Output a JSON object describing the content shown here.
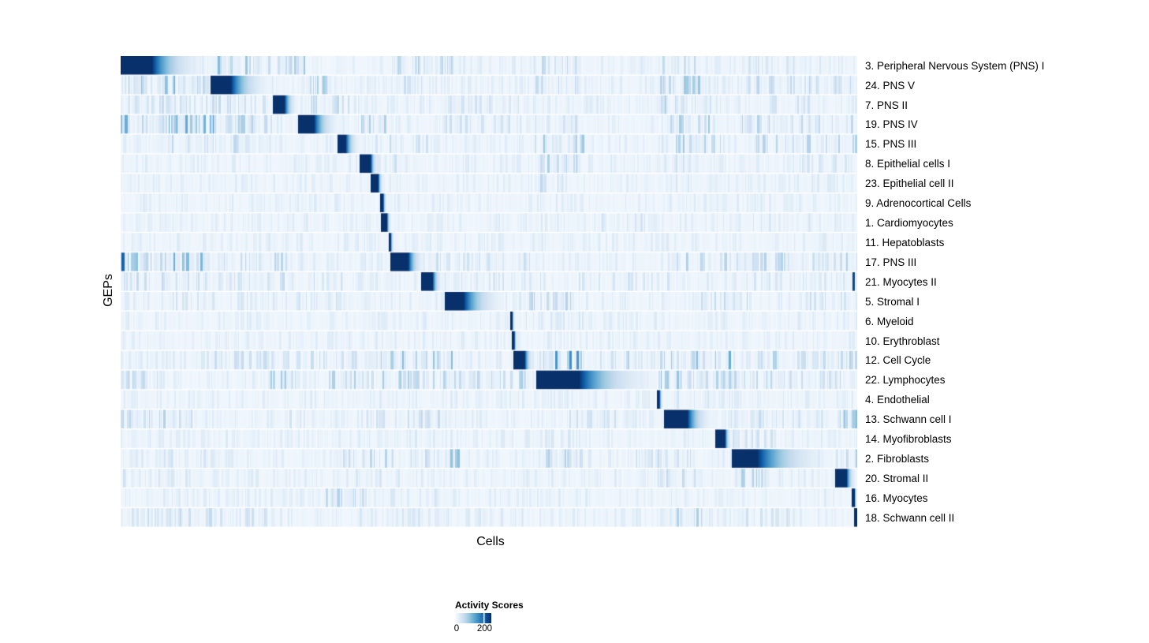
{
  "chart_data": {
    "type": "heatmap",
    "title": "",
    "xlabel": "Cells",
    "ylabel": "GEPs",
    "grid": false,
    "legend": {
      "title": "Activity Scores",
      "position": "bottom",
      "ticks": [
        {
          "label": "0",
          "frac": 0.0
        },
        {
          "label": "200",
          "frac": 0.815
        }
      ]
    },
    "colors": {
      "low": "#f7fbff",
      "high": "#08306b",
      "scale": [
        "#f7fbff",
        "#deebf7",
        "#c6dbef",
        "#9ecae1",
        "#6baed6",
        "#4292c6",
        "#2171b5",
        "#08519c",
        "#08306b"
      ],
      "page_background": "#ffffff"
    },
    "rows": [
      {
        "label": "3. Peripheral Nervous System (PNS) I",
        "block": [
          0.0,
          0.042,
          0.115
        ],
        "noise": [
          [
            0.13,
            0.25,
            0.4
          ],
          [
            0.37,
            0.45,
            0.28
          ],
          [
            0.56,
            0.63,
            0.25
          ],
          [
            0.73,
            0.78,
            0.3
          ],
          [
            0.85,
            0.99,
            0.15
          ]
        ],
        "marks": []
      },
      {
        "label": "24. PNS V",
        "block": [
          0.122,
          0.149,
          0.203
        ],
        "noise": [
          [
            0.0,
            0.12,
            0.55
          ],
          [
            0.24,
            0.28,
            0.35
          ],
          [
            0.37,
            0.41,
            0.28
          ],
          [
            0.56,
            0.62,
            0.3
          ],
          [
            0.73,
            0.79,
            0.35
          ],
          [
            0.85,
            1.0,
            0.25
          ]
        ],
        "marks": []
      },
      {
        "label": "7. PNS II",
        "block": [
          0.206,
          0.222,
          0.24
        ],
        "noise": [
          [
            0.0,
            0.2,
            0.22
          ],
          [
            0.25,
            0.31,
            0.3
          ],
          [
            0.44,
            0.56,
            0.18
          ],
          [
            0.73,
            0.8,
            0.35
          ],
          [
            0.86,
            0.95,
            0.2
          ]
        ],
        "marks": []
      },
      {
        "label": "19. PNS IV",
        "block": [
          0.24,
          0.262,
          0.296
        ],
        "noise": [
          [
            0.0,
            0.13,
            0.55
          ],
          [
            0.14,
            0.22,
            0.3
          ],
          [
            0.3,
            0.36,
            0.35
          ],
          [
            0.44,
            0.62,
            0.22
          ],
          [
            0.73,
            0.8,
            0.35
          ],
          [
            0.84,
            1.0,
            0.28
          ]
        ],
        "marks": []
      },
      {
        "label": "15. PNS III",
        "block": [
          0.294,
          0.305,
          0.324
        ],
        "noise": [
          [
            0.0,
            0.2,
            0.25
          ],
          [
            0.33,
            0.42,
            0.22
          ],
          [
            0.56,
            0.63,
            0.4
          ],
          [
            0.73,
            0.82,
            0.35
          ],
          [
            0.86,
            1.0,
            0.28
          ]
        ],
        "marks": []
      },
      {
        "label": "8. Epithelial cells I",
        "block": [
          0.324,
          0.339,
          0.349
        ],
        "noise": [
          [
            0.34,
            0.4,
            0.2
          ],
          [
            0.56,
            0.62,
            0.3
          ],
          [
            0.72,
            0.78,
            0.2
          ],
          [
            0.9,
            1.0,
            0.16
          ]
        ],
        "marks": []
      },
      {
        "label": "23. Epithelial cell II",
        "block": [
          0.339,
          0.349,
          0.357
        ],
        "noise": [
          [
            0.56,
            0.6,
            0.25
          ],
          [
            0.73,
            0.77,
            0.15
          ],
          [
            0.9,
            1.0,
            0.12
          ]
        ],
        "marks": []
      },
      {
        "label": "9. Adrenocortical Cells",
        "block": [
          0.352,
          0.356,
          0.361
        ],
        "noise": [
          [
            0.56,
            0.6,
            0.15
          ],
          [
            0.73,
            0.76,
            0.1
          ]
        ],
        "marks": []
      },
      {
        "label": "1. Cardiomyocytes",
        "block": [
          0.353,
          0.361,
          0.367
        ],
        "noise": [
          [
            0.53,
            0.72,
            0.16
          ],
          [
            0.84,
            0.95,
            0.12
          ]
        ],
        "marks": []
      },
      {
        "label": "11. Hepatoblasts",
        "block": [
          0.363,
          0.366,
          0.371
        ],
        "noise": [
          [
            0.45,
            0.55,
            0.08
          ]
        ],
        "marks": []
      },
      {
        "label": "17. PNS III",
        "block": [
          0.366,
          0.39,
          0.412
        ],
        "noise": [
          [
            0.0,
            0.13,
            0.5
          ],
          [
            0.14,
            0.25,
            0.28
          ],
          [
            0.42,
            0.52,
            0.2
          ],
          [
            0.53,
            0.57,
            0.35
          ],
          [
            0.73,
            0.77,
            0.35
          ],
          [
            0.78,
            1.0,
            0.28
          ]
        ],
        "marks": [
          [
            0.001,
            0.004,
            0.8
          ]
        ]
      },
      {
        "label": "21. Myocytes II",
        "block": [
          0.407,
          0.423,
          0.436
        ],
        "noise": [
          [
            0.0,
            0.3,
            0.22
          ],
          [
            0.44,
            0.57,
            0.16
          ],
          [
            0.6,
            0.75,
            0.16
          ],
          [
            0.85,
            0.99,
            0.16
          ]
        ],
        "marks": [
          [
            0.9935,
            0.0032,
            0.9
          ]
        ]
      },
      {
        "label": "5. Stromal I",
        "block": [
          0.439,
          0.465,
          0.521
        ],
        "noise": [
          [
            0.05,
            0.3,
            0.16
          ],
          [
            0.53,
            0.62,
            0.28
          ],
          [
            0.78,
            0.88,
            0.28
          ],
          [
            0.93,
            1.0,
            0.2
          ]
        ],
        "marks": []
      },
      {
        "label": "6. Myeloid",
        "block": [
          0.528,
          0.531,
          0.535
        ],
        "noise": [
          [
            0.55,
            0.63,
            0.14
          ],
          [
            0.84,
            0.95,
            0.1
          ]
        ],
        "marks": []
      },
      {
        "label": "10. Erythroblast",
        "block": [
          0.531,
          0.534,
          0.538
        ],
        "noise": [
          [
            0.3,
            0.5,
            0.07
          ]
        ],
        "marks": []
      },
      {
        "label": "12. Cell Cycle",
        "block": [
          0.533,
          0.548,
          0.561
        ],
        "noise": [
          [
            0.1,
            0.32,
            0.22
          ],
          [
            0.33,
            0.45,
            0.42
          ],
          [
            0.565,
            0.63,
            0.6
          ],
          [
            0.64,
            0.71,
            0.28
          ],
          [
            0.73,
            0.84,
            0.48
          ],
          [
            0.86,
            1.0,
            0.28
          ]
        ],
        "marks": []
      },
      {
        "label": "22. Lymphocytes",
        "block": [
          0.564,
          0.622,
          0.727
        ],
        "noise": [
          [
            0.0,
            0.06,
            0.28
          ],
          [
            0.2,
            0.56,
            0.32
          ],
          [
            0.73,
            0.8,
            0.4
          ],
          [
            0.8,
            1.0,
            0.28
          ]
        ],
        "marks": []
      },
      {
        "label": "4. Endothelial",
        "block": [
          0.728,
          0.731,
          0.736
        ],
        "noise": [
          [
            0.74,
            0.85,
            0.14
          ],
          [
            0.9,
            1.0,
            0.1
          ]
        ],
        "marks": []
      },
      {
        "label": "13. Schwann cell I",
        "block": [
          0.737,
          0.769,
          0.803
        ],
        "noise": [
          [
            0.0,
            0.1,
            0.28
          ],
          [
            0.18,
            0.25,
            0.18
          ],
          [
            0.33,
            0.45,
            0.22
          ],
          [
            0.6,
            0.7,
            0.18
          ],
          [
            0.82,
            0.96,
            0.22
          ],
          [
            0.97,
            1.0,
            0.4
          ]
        ],
        "marks": []
      },
      {
        "label": "14. Myofibroblasts",
        "block": [
          0.807,
          0.82,
          0.829
        ],
        "noise": [
          [
            0.3,
            0.45,
            0.12
          ],
          [
            0.56,
            0.62,
            0.14
          ],
          [
            0.83,
            0.9,
            0.18
          ]
        ],
        "marks": []
      },
      {
        "label": "2. Fibroblasts",
        "block": [
          0.829,
          0.864,
          0.963
        ],
        "noise": [
          [
            0.05,
            0.12,
            0.18
          ],
          [
            0.3,
            0.44,
            0.28
          ],
          [
            0.44,
            0.46,
            0.5
          ],
          [
            0.56,
            0.63,
            0.28
          ],
          [
            0.7,
            0.78,
            0.22
          ],
          [
            0.97,
            1.0,
            0.3
          ]
        ],
        "marks": []
      },
      {
        "label": "20. Stromal II",
        "block": [
          0.969,
          0.985,
          0.998
        ],
        "noise": [
          [
            0.0,
            0.1,
            0.18
          ],
          [
            0.3,
            0.4,
            0.14
          ],
          [
            0.73,
            0.78,
            0.22
          ],
          [
            0.83,
            0.88,
            0.32
          ]
        ],
        "marks": []
      },
      {
        "label": "16. Myocytes",
        "block": [
          0.992,
          0.996,
          0.999
        ],
        "noise": [
          [
            0.26,
            0.33,
            0.28
          ],
          [
            0.36,
            0.44,
            0.14
          ],
          [
            0.56,
            0.6,
            0.12
          ]
        ],
        "marks": []
      },
      {
        "label": "18. Schwann cell II",
        "block": [
          0.995,
          1.001,
          1.001
        ],
        "noise": [
          [
            0.0,
            0.2,
            0.22
          ],
          [
            0.3,
            0.56,
            0.14
          ],
          [
            0.73,
            0.79,
            0.32
          ],
          [
            0.84,
            0.92,
            0.18
          ]
        ],
        "marks": []
      }
    ]
  }
}
